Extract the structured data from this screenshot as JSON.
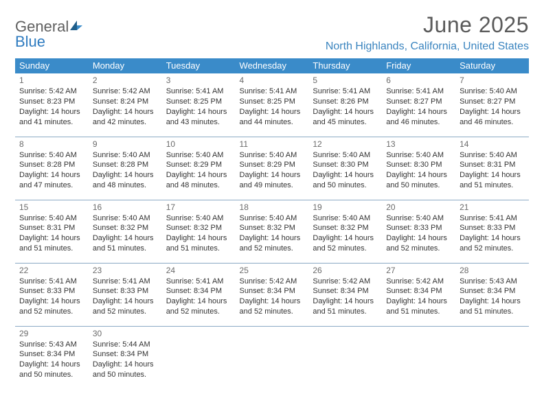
{
  "brand": {
    "part1": "General",
    "part2": "Blue"
  },
  "title": "June 2025",
  "location": "North Highlands, California, United States",
  "weekdays": [
    "Sunday",
    "Monday",
    "Tuesday",
    "Wednesday",
    "Thursday",
    "Friday",
    "Saturday"
  ],
  "colors": {
    "header_bg": "#3a8bc9",
    "header_text": "#ffffff",
    "divider": "#8aa9c4",
    "brand_gray": "#5f5f5f",
    "brand_blue": "#2e7bc0",
    "location_color": "#3a84bf"
  },
  "layout": {
    "columns": 7,
    "rows": 5,
    "cell_font_size": 11
  },
  "days": [
    {
      "n": 1,
      "sunrise": "5:42 AM",
      "sunset": "8:23 PM",
      "daylight": "14 hours and 41 minutes."
    },
    {
      "n": 2,
      "sunrise": "5:42 AM",
      "sunset": "8:24 PM",
      "daylight": "14 hours and 42 minutes."
    },
    {
      "n": 3,
      "sunrise": "5:41 AM",
      "sunset": "8:25 PM",
      "daylight": "14 hours and 43 minutes."
    },
    {
      "n": 4,
      "sunrise": "5:41 AM",
      "sunset": "8:25 PM",
      "daylight": "14 hours and 44 minutes."
    },
    {
      "n": 5,
      "sunrise": "5:41 AM",
      "sunset": "8:26 PM",
      "daylight": "14 hours and 45 minutes."
    },
    {
      "n": 6,
      "sunrise": "5:41 AM",
      "sunset": "8:27 PM",
      "daylight": "14 hours and 46 minutes."
    },
    {
      "n": 7,
      "sunrise": "5:40 AM",
      "sunset": "8:27 PM",
      "daylight": "14 hours and 46 minutes."
    },
    {
      "n": 8,
      "sunrise": "5:40 AM",
      "sunset": "8:28 PM",
      "daylight": "14 hours and 47 minutes."
    },
    {
      "n": 9,
      "sunrise": "5:40 AM",
      "sunset": "8:28 PM",
      "daylight": "14 hours and 48 minutes."
    },
    {
      "n": 10,
      "sunrise": "5:40 AM",
      "sunset": "8:29 PM",
      "daylight": "14 hours and 48 minutes."
    },
    {
      "n": 11,
      "sunrise": "5:40 AM",
      "sunset": "8:29 PM",
      "daylight": "14 hours and 49 minutes."
    },
    {
      "n": 12,
      "sunrise": "5:40 AM",
      "sunset": "8:30 PM",
      "daylight": "14 hours and 50 minutes."
    },
    {
      "n": 13,
      "sunrise": "5:40 AM",
      "sunset": "8:30 PM",
      "daylight": "14 hours and 50 minutes."
    },
    {
      "n": 14,
      "sunrise": "5:40 AM",
      "sunset": "8:31 PM",
      "daylight": "14 hours and 51 minutes."
    },
    {
      "n": 15,
      "sunrise": "5:40 AM",
      "sunset": "8:31 PM",
      "daylight": "14 hours and 51 minutes."
    },
    {
      "n": 16,
      "sunrise": "5:40 AM",
      "sunset": "8:32 PM",
      "daylight": "14 hours and 51 minutes."
    },
    {
      "n": 17,
      "sunrise": "5:40 AM",
      "sunset": "8:32 PM",
      "daylight": "14 hours and 51 minutes."
    },
    {
      "n": 18,
      "sunrise": "5:40 AM",
      "sunset": "8:32 PM",
      "daylight": "14 hours and 52 minutes."
    },
    {
      "n": 19,
      "sunrise": "5:40 AM",
      "sunset": "8:32 PM",
      "daylight": "14 hours and 52 minutes."
    },
    {
      "n": 20,
      "sunrise": "5:40 AM",
      "sunset": "8:33 PM",
      "daylight": "14 hours and 52 minutes."
    },
    {
      "n": 21,
      "sunrise": "5:41 AM",
      "sunset": "8:33 PM",
      "daylight": "14 hours and 52 minutes."
    },
    {
      "n": 22,
      "sunrise": "5:41 AM",
      "sunset": "8:33 PM",
      "daylight": "14 hours and 52 minutes."
    },
    {
      "n": 23,
      "sunrise": "5:41 AM",
      "sunset": "8:33 PM",
      "daylight": "14 hours and 52 minutes."
    },
    {
      "n": 24,
      "sunrise": "5:41 AM",
      "sunset": "8:34 PM",
      "daylight": "14 hours and 52 minutes."
    },
    {
      "n": 25,
      "sunrise": "5:42 AM",
      "sunset": "8:34 PM",
      "daylight": "14 hours and 52 minutes."
    },
    {
      "n": 26,
      "sunrise": "5:42 AM",
      "sunset": "8:34 PM",
      "daylight": "14 hours and 51 minutes."
    },
    {
      "n": 27,
      "sunrise": "5:42 AM",
      "sunset": "8:34 PM",
      "daylight": "14 hours and 51 minutes."
    },
    {
      "n": 28,
      "sunrise": "5:43 AM",
      "sunset": "8:34 PM",
      "daylight": "14 hours and 51 minutes."
    },
    {
      "n": 29,
      "sunrise": "5:43 AM",
      "sunset": "8:34 PM",
      "daylight": "14 hours and 50 minutes."
    },
    {
      "n": 30,
      "sunrise": "5:44 AM",
      "sunset": "8:34 PM",
      "daylight": "14 hours and 50 minutes."
    }
  ],
  "labels": {
    "sunrise": "Sunrise:",
    "sunset": "Sunset:",
    "daylight": "Daylight:"
  }
}
